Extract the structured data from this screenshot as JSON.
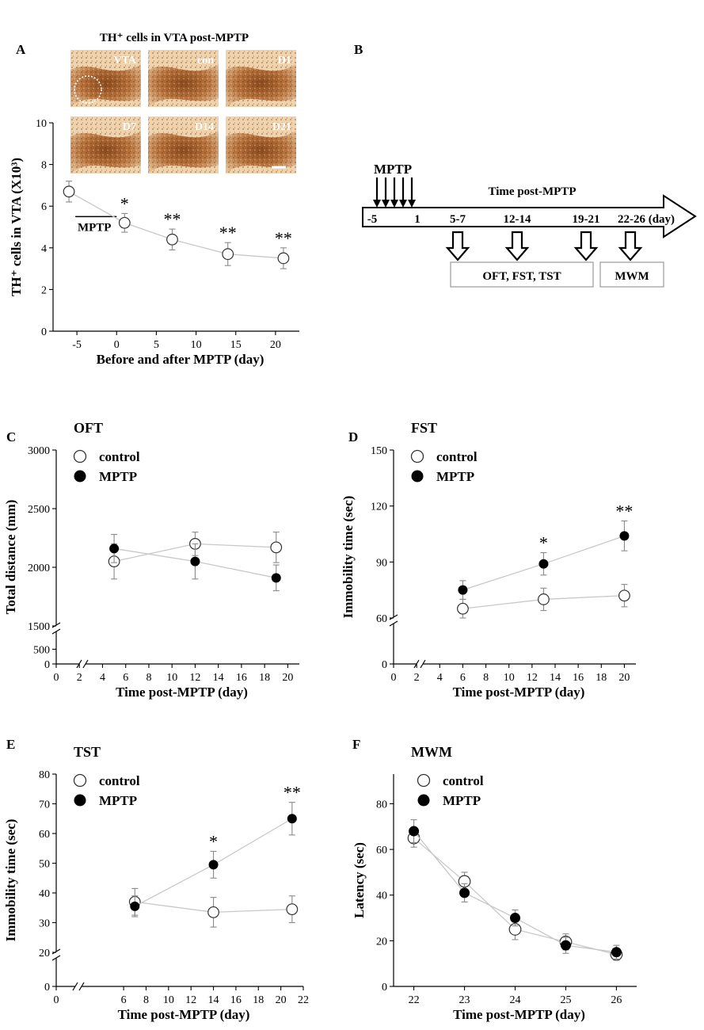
{
  "panel_labels": [
    "A",
    "B",
    "C",
    "D",
    "E",
    "F"
  ],
  "colors": {
    "series": "#000000",
    "connector": "#c8c8c8",
    "errorbar": "#8a8a8a",
    "tissue_light": "#e9c9a0",
    "tissue_dark": "#7a3a10"
  },
  "micrographs": {
    "title": "TH⁺ cells in VTA post-MPTP",
    "tiles": [
      {
        "label": "VTA",
        "outlined": true
      },
      {
        "label": "con"
      },
      {
        "label": "D1"
      },
      {
        "label": "D7"
      },
      {
        "label": "D14"
      },
      {
        "label": "D21"
      }
    ]
  },
  "timeline": {
    "mptp_label": "MPTP",
    "arrow_label": "Time post-MPTP",
    "points": [
      "-5",
      "1",
      "5-7",
      "12-14",
      "19-21",
      "22-26 (day)"
    ],
    "box_tests": "OFT, FST, TST",
    "box_mwm": "MWM"
  },
  "chart_data": [
    {
      "panel": "A",
      "type": "scatter",
      "title": "",
      "xlabel": "Before and after MPTP (day)",
      "ylabel": "TH⁺ cells in VTA (X10³)",
      "xlim": [
        -8,
        23
      ],
      "ylim": [
        0,
        10
      ],
      "xticks": [
        -5,
        0,
        5,
        10,
        15,
        20
      ],
      "yticks": [
        0,
        2,
        4,
        6,
        8,
        10
      ],
      "series": [
        {
          "name": "TH+ cells",
          "marker": "open",
          "x": [
            -6,
            1,
            7,
            14,
            21
          ],
          "values": [
            6.7,
            5.2,
            4.4,
            3.7,
            3.5
          ],
          "err": [
            0.5,
            0.45,
            0.5,
            0.55,
            0.5
          ],
          "sig": [
            "",
            "*",
            "**",
            "**",
            "**"
          ]
        }
      ],
      "annotations": [
        {
          "text": "MPTP",
          "x_from": -5,
          "x_to": 1,
          "y": 5.5
        }
      ]
    },
    {
      "panel": "C",
      "type": "line",
      "title": "OFT",
      "xlabel": "Time post-MPTP (day)",
      "ylabel": "Total distance (mm)",
      "xlim": [
        0,
        21
      ],
      "xticks": [
        0,
        2,
        4,
        6,
        8,
        10,
        12,
        14,
        16,
        18,
        20
      ],
      "yticks": [
        0,
        500,
        1500,
        2000,
        2500,
        3000
      ],
      "y_break": {
        "low": [
          0,
          700
        ],
        "high": [
          1500,
          3000
        ]
      },
      "legend": "top-left",
      "series": [
        {
          "name": "control",
          "marker": "open",
          "x": [
            5,
            12,
            19
          ],
          "values": [
            2050,
            2200,
            2170
          ],
          "err": [
            150,
            100,
            130
          ],
          "sig": [
            "",
            "",
            ""
          ]
        },
        {
          "name": "MPTP",
          "marker": "filled",
          "x": [
            5,
            12,
            19
          ],
          "values": [
            2160,
            2050,
            1910
          ],
          "err": [
            120,
            150,
            110
          ],
          "sig": [
            "",
            "",
            ""
          ]
        }
      ]
    },
    {
      "panel": "D",
      "type": "line",
      "title": "FST",
      "xlabel": "Time post-MPTP (day)",
      "ylabel": "Immobility time (sec)",
      "xlim": [
        0,
        21
      ],
      "xticks": [
        0,
        2,
        4,
        6,
        8,
        10,
        12,
        14,
        16,
        18,
        20
      ],
      "yticks": [
        0,
        60,
        90,
        120,
        150
      ],
      "y_break": {
        "low": [
          0,
          25
        ],
        "high": [
          60,
          150
        ]
      },
      "legend": "top-left",
      "series": [
        {
          "name": "control",
          "marker": "open",
          "x": [
            6,
            13,
            20
          ],
          "values": [
            65,
            70,
            72
          ],
          "err": [
            5,
            6,
            6
          ],
          "sig": [
            "",
            "",
            ""
          ]
        },
        {
          "name": "MPTP",
          "marker": "filled",
          "x": [
            6,
            13,
            20
          ],
          "values": [
            75,
            89,
            104
          ],
          "err": [
            5,
            6,
            8
          ],
          "sig": [
            "",
            "*",
            "**"
          ]
        }
      ]
    },
    {
      "panel": "E",
      "type": "line",
      "title": "TST",
      "xlabel": "Time post-MPTP (day)",
      "ylabel": "Immobility time (sec)",
      "xlim": [
        0,
        22
      ],
      "xticks": [
        0,
        6,
        8,
        10,
        12,
        14,
        16,
        18,
        20,
        22
      ],
      "yticks": [
        0,
        20,
        30,
        40,
        50,
        60,
        70,
        80
      ],
      "y_break": {
        "low": [
          0,
          10
        ],
        "high": [
          20,
          80
        ]
      },
      "legend": "top-left",
      "series": [
        {
          "name": "control",
          "marker": "open",
          "x": [
            7,
            14,
            21
          ],
          "values": [
            37,
            33.5,
            34.5
          ],
          "err": [
            4.5,
            5,
            4.5
          ],
          "sig": [
            "",
            "",
            ""
          ]
        },
        {
          "name": "MPTP",
          "marker": "filled",
          "x": [
            7,
            14,
            21
          ],
          "values": [
            35.5,
            49.5,
            65
          ],
          "err": [
            3.5,
            4.5,
            5.5
          ],
          "sig": [
            "",
            "*",
            "**"
          ]
        }
      ]
    },
    {
      "panel": "F",
      "type": "line",
      "title": "MWM",
      "xlabel": "Time post-MPTP (day)",
      "ylabel": "Latency (sec)",
      "xlim": [
        21.6,
        26.4
      ],
      "ylim": [
        0,
        93
      ],
      "xticks": [
        22,
        23,
        24,
        25,
        26
      ],
      "yticks": [
        0,
        20,
        40,
        60,
        80
      ],
      "legend": "top-left",
      "series": [
        {
          "name": "control",
          "marker": "open",
          "x": [
            22,
            23,
            24,
            25,
            26
          ],
          "values": [
            65,
            46,
            25,
            19.5,
            14
          ],
          "err": [
            4,
            4,
            4.5,
            3.5,
            2.5
          ],
          "sig": [
            "",
            "",
            "",
            "",
            ""
          ]
        },
        {
          "name": "MPTP",
          "marker": "filled",
          "x": [
            22,
            23,
            24,
            25,
            26
          ],
          "values": [
            68,
            41,
            30,
            18,
            15
          ],
          "err": [
            5,
            4,
            3.5,
            3.5,
            3
          ],
          "sig": [
            "",
            "",
            "",
            "",
            ""
          ]
        }
      ]
    }
  ]
}
